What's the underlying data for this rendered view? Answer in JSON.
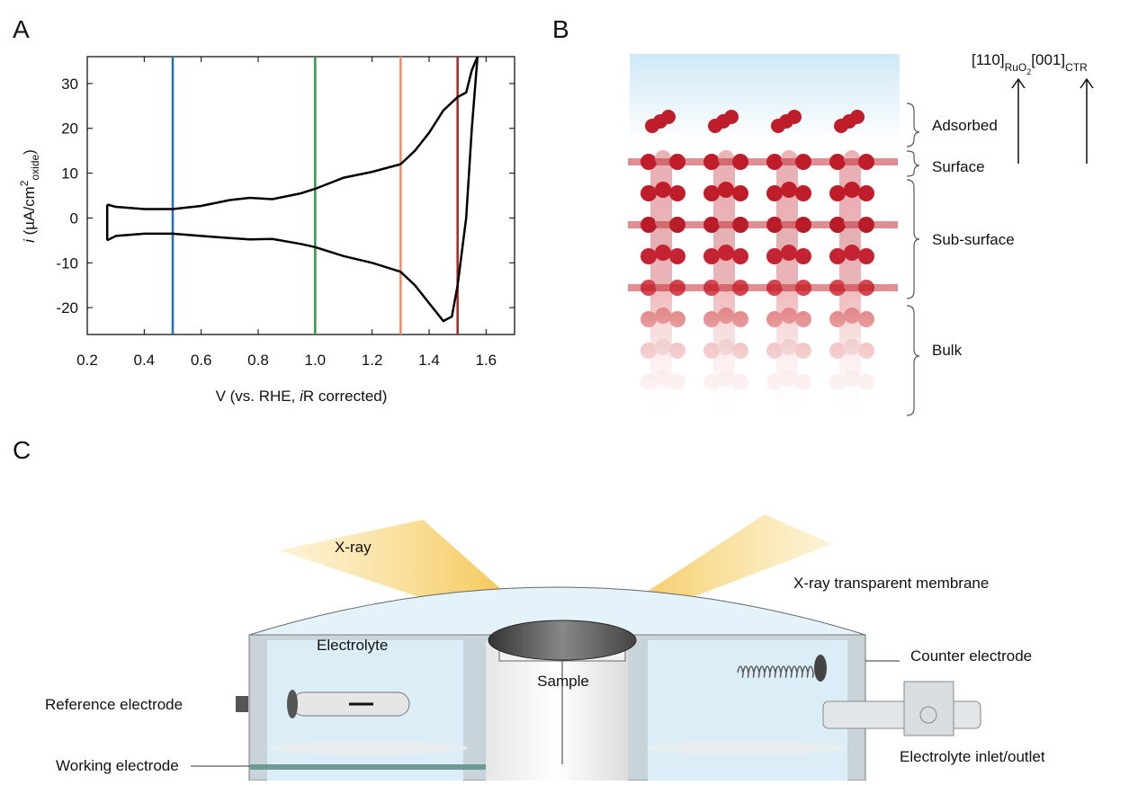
{
  "panels": {
    "a": "A",
    "b": "B",
    "c": "C"
  },
  "chart_data": {
    "type": "line",
    "y_label": {
      "italic": "i",
      "text": " (µA/cm",
      "sup": "2",
      "sub": "oxide",
      "close": ")"
    },
    "x_label": {
      "text": "V (vs. RHE, ",
      "italic": "i",
      "rest": "R corrected)"
    },
    "series": [
      {
        "color": "#000000",
        "x": [
          0.27,
          0.3,
          0.4,
          0.5,
          0.6,
          0.7,
          0.77,
          0.85,
          0.95,
          1.0,
          1.1,
          1.2,
          1.3,
          1.35,
          1.4,
          1.45,
          1.5,
          1.53,
          1.55,
          1.57
        ],
        "values": [
          3,
          2.5,
          2,
          2,
          2.7,
          4,
          4.5,
          4.2,
          5.5,
          6.5,
          9,
          10.3,
          12,
          15,
          19,
          24,
          27,
          28,
          33,
          36
        ]
      },
      {
        "color": "#000000",
        "x": [
          0.27,
          0.3,
          0.4,
          0.5,
          0.6,
          0.7,
          0.77,
          0.85,
          0.95,
          1.0,
          1.1,
          1.2,
          1.3,
          1.35,
          1.4,
          1.45,
          1.48,
          1.5,
          1.53,
          1.55,
          1.57
        ],
        "values": [
          -5,
          -4,
          -3.5,
          -3.5,
          -4,
          -4.5,
          -4.8,
          -4.7,
          -5.8,
          -6.5,
          -8.5,
          -10,
          -12,
          -15,
          -19,
          -23,
          -22,
          -15,
          0,
          20,
          36
        ]
      }
    ],
    "vlines": [
      {
        "x": 0.5,
        "color": "#1f6fb5"
      },
      {
        "x": 1.0,
        "color": "#2e9a47"
      },
      {
        "x": 1.3,
        "color": "#f08a64"
      },
      {
        "x": 1.5,
        "color": "#a3262a"
      }
    ],
    "xlim": [
      0.2,
      1.7
    ],
    "ylim": [
      -26,
      36
    ],
    "xticks": [
      0.2,
      0.4,
      0.6,
      0.8,
      {
        "value": 1,
        "label": "1.0"
      },
      1.2,
      1.4,
      1.6
    ],
    "yticks": [
      -20,
      -10,
      0,
      10,
      20,
      30
    ]
  },
  "structure": {
    "direction": {
      "a": "[110]",
      "a_sub": "RuO",
      "a_sub2": "2",
      "b": "[001]",
      "b_sub": "CTR"
    },
    "layers": [
      "Adsorbed",
      "Surface",
      "Sub-surface",
      "Bulk"
    ]
  },
  "cell": {
    "xray": "X-ray",
    "membrane": "X-ray transparent membrane",
    "electrolyte": "Electrolyte",
    "sample": "Sample",
    "counter": "Counter electrode",
    "reference": "Reference electrode",
    "inlet": "Electrolyte inlet/outlet",
    "working": "Working electrode"
  }
}
